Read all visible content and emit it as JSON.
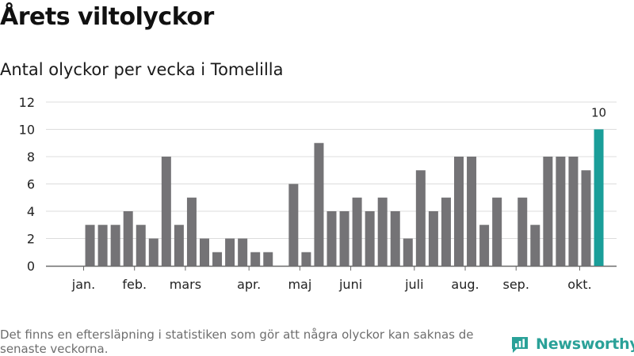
{
  "header": {
    "title": "Årets viltolyckor",
    "subtitle": "Antal olyckor per vecka i Tomelilla"
  },
  "footer": {
    "note": "Det finns en eftersläpning i statistiken som gör att några olyckor kan saknas de senaste veckorna.",
    "brand": "Newsworthy"
  },
  "colors": {
    "bar": "#747376",
    "highlight": "#1a9e99",
    "grid": "#dcdcdc",
    "axis": "#6b6b6b",
    "brand": "#2aa198"
  },
  "chart_data": {
    "type": "bar",
    "title": "Antal olyckor per vecka i Tomelilla",
    "xlabel": "",
    "ylabel": "",
    "ylim": [
      0,
      12
    ],
    "yticks": [
      0,
      2,
      4,
      6,
      8,
      10,
      12
    ],
    "grid": true,
    "weeks": [
      1,
      2,
      3,
      4,
      5,
      6,
      7,
      8,
      9,
      10,
      11,
      12,
      13,
      14,
      15,
      16,
      17,
      18,
      19,
      20,
      21,
      22,
      23,
      24,
      25,
      26,
      27,
      28,
      29,
      30,
      31,
      32,
      33,
      34,
      35,
      36,
      37,
      38,
      39,
      40,
      41,
      42,
      43,
      44,
      45
    ],
    "values": [
      0,
      3,
      3,
      3,
      4,
      3,
      2,
      8,
      3,
      5,
      2,
      1,
      2,
      2,
      1,
      1,
      0,
      6,
      1,
      9,
      4,
      4,
      5,
      4,
      5,
      4,
      2,
      7,
      4,
      5,
      8,
      8,
      3,
      5,
      0,
      5,
      3,
      8,
      8,
      8,
      7,
      10,
      null,
      null,
      null
    ],
    "highlight_index": 41,
    "data_labels": [
      {
        "index": 41,
        "text": "10"
      }
    ],
    "month_labels": [
      {
        "label": "jan.",
        "week": 1.5
      },
      {
        "label": "feb.",
        "week": 5.5
      },
      {
        "label": "mars",
        "week": 9.5
      },
      {
        "label": "apr.",
        "week": 14.5
      },
      {
        "label": "maj",
        "week": 18.5
      },
      {
        "label": "juni",
        "week": 22.5
      },
      {
        "label": "juli",
        "week": 27.5
      },
      {
        "label": "aug.",
        "week": 31.5
      },
      {
        "label": "sep.",
        "week": 35.5
      },
      {
        "label": "okt.",
        "week": 40.5
      }
    ]
  }
}
